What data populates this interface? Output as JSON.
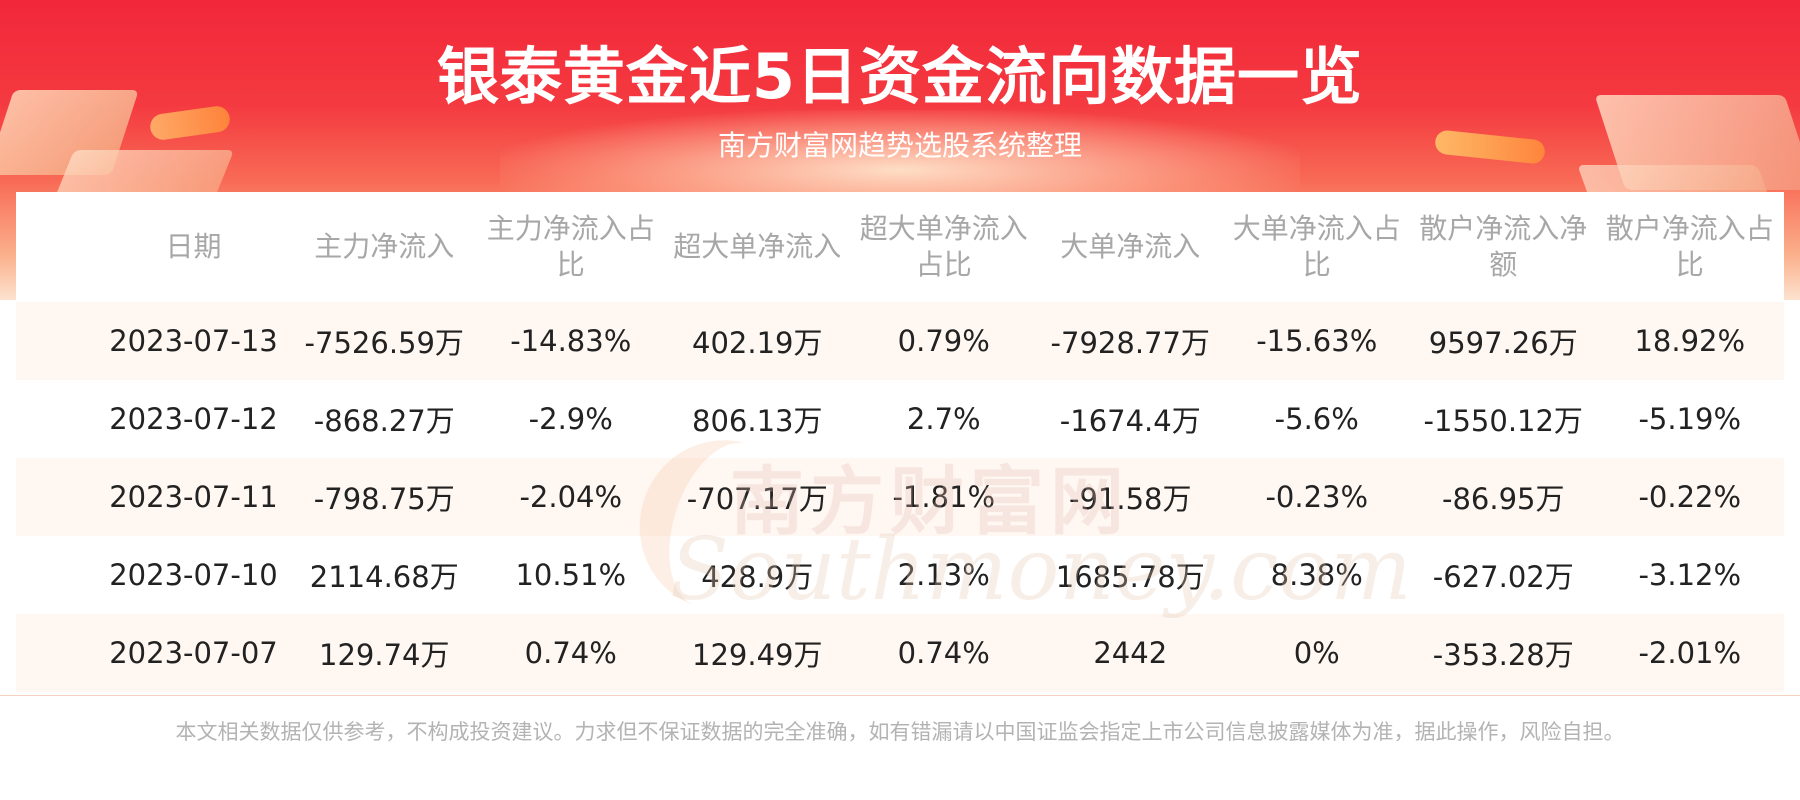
{
  "header": {
    "title": "银泰黄金近5日资金流向数据一览",
    "subtitle": "南方财富网趋势选股系统整理"
  },
  "watermark": {
    "cn": "南方财富网",
    "en": "Southmoney.com"
  },
  "table": {
    "columns": [
      "日期",
      "主力净流入",
      "主力净流入占比",
      "超大单净流入",
      "超大单净流入占比",
      "大单净流入",
      "大单净流入占比",
      "散户净流入净额",
      "散户净流入占比"
    ],
    "rows": [
      [
        "2023-07-13",
        "-7526.59万",
        "-14.83%",
        "402.19万",
        "0.79%",
        "-7928.77万",
        "-15.63%",
        "9597.26万",
        "18.92%"
      ],
      [
        "2023-07-12",
        "-868.27万",
        "-2.9%",
        "806.13万",
        "2.7%",
        "-1674.4万",
        "-5.6%",
        "-1550.12万",
        "-5.19%"
      ],
      [
        "2023-07-11",
        "-798.75万",
        "-2.04%",
        "-707.17万",
        "-1.81%",
        "-91.58万",
        "-0.23%",
        "-86.95万",
        "-0.22%"
      ],
      [
        "2023-07-10",
        "2114.68万",
        "10.51%",
        "428.9万",
        "2.13%",
        "1685.78万",
        "8.38%",
        "-627.02万",
        "-3.12%"
      ],
      [
        "2023-07-07",
        "129.74万",
        "0.74%",
        "129.49万",
        "0.74%",
        "2442",
        "0%",
        "-353.28万",
        "-2.01%"
      ]
    ]
  },
  "footer": {
    "disclaimer": "本文相关数据仅供参考，不构成投资建议。力求但不保证数据的完全准确，如有错漏请以中国证监会指定上市公司信息披露媒体为准，据此操作，风险自担。"
  },
  "colors": {
    "banner_red": "#f2273a",
    "row_shade": "#fff7f1",
    "header_text": "#a7a7a7",
    "data_text": "#222222"
  }
}
